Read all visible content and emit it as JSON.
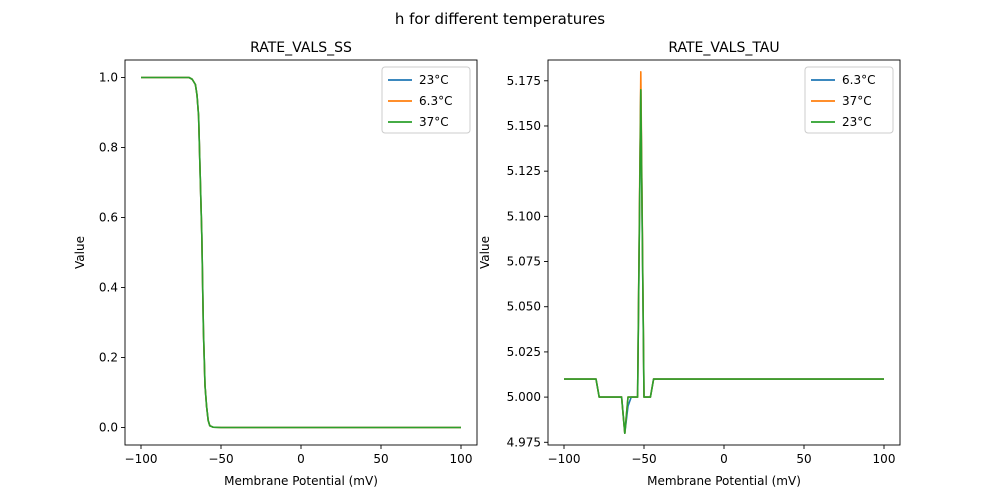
{
  "figure": {
    "suptitle": "h for different temperatures"
  },
  "chart_data": [
    {
      "type": "line",
      "title": "RATE_VALS_SS",
      "xlabel": "Membrane Potential (mV)",
      "ylabel": "Value",
      "xlim": [
        -110,
        110
      ],
      "ylim": [
        -0.05,
        1.05
      ],
      "xticks": [
        -100,
        -50,
        0,
        50,
        100
      ],
      "yticks": [
        0.0,
        0.2,
        0.4,
        0.6,
        0.8,
        1.0
      ],
      "ytick_decimals": 1,
      "grid": false,
      "legend_position": "top-right",
      "series": [
        {
          "name": "23°C",
          "color": "#1f77b4",
          "x": [
            -100,
            -80,
            -70,
            -68,
            -66,
            -65,
            -64,
            -63,
            -62,
            -61,
            -60,
            -59,
            -58,
            -57,
            -55,
            -50,
            0,
            100
          ],
          "y": [
            1.0,
            1.0,
            1.0,
            0.995,
            0.98,
            0.95,
            0.89,
            0.72,
            0.55,
            0.28,
            0.12,
            0.06,
            0.02,
            0.005,
            0.001,
            0.0,
            0.0,
            0.0
          ]
        },
        {
          "name": "6.3°C",
          "color": "#ff7f0e",
          "x": [
            -100,
            -80,
            -70,
            -68,
            -66,
            -65,
            -64,
            -63,
            -62,
            -61,
            -60,
            -59,
            -58,
            -57,
            -55,
            -50,
            0,
            100
          ],
          "y": [
            1.0,
            1.0,
            1.0,
            0.995,
            0.98,
            0.95,
            0.89,
            0.72,
            0.55,
            0.28,
            0.12,
            0.06,
            0.02,
            0.005,
            0.001,
            0.0,
            0.0,
            0.0
          ]
        },
        {
          "name": "37°C",
          "color": "#2ca02c",
          "x": [
            -100,
            -80,
            -70,
            -68,
            -66,
            -65,
            -64,
            -63,
            -62,
            -61,
            -60,
            -59,
            -58,
            -57,
            -55,
            -50,
            0,
            100
          ],
          "y": [
            1.0,
            1.0,
            1.0,
            0.995,
            0.98,
            0.95,
            0.89,
            0.72,
            0.55,
            0.28,
            0.12,
            0.06,
            0.02,
            0.005,
            0.001,
            0.0,
            0.0,
            0.0
          ]
        }
      ]
    },
    {
      "type": "line",
      "title": "RATE_VALS_TAU",
      "xlabel": "Membrane Potential (mV)",
      "ylabel": "Value",
      "xlim": [
        -110,
        110
      ],
      "ylim": [
        4.9735,
        5.1865
      ],
      "xticks": [
        -100,
        -50,
        0,
        50,
        100
      ],
      "yticks": [
        4.975,
        5.0,
        5.025,
        5.05,
        5.075,
        5.1,
        5.125,
        5.15,
        5.175
      ],
      "ytick_decimals": 3,
      "grid": false,
      "legend_position": "top-right",
      "series": [
        {
          "name": "6.3°C",
          "color": "#1f77b4",
          "x": [
            -100,
            -80,
            -78,
            -64,
            -62,
            -60,
            -58,
            -54,
            -52,
            -50,
            -48,
            -46,
            -44,
            0,
            100
          ],
          "y": [
            5.01,
            5.01,
            5.0,
            5.0,
            4.98,
            4.995,
            5.0,
            5.0,
            5.17,
            5.0,
            5.0,
            5.0,
            5.01,
            5.01,
            5.01
          ]
        },
        {
          "name": "37°C",
          "color": "#ff7f0e",
          "x": [
            -100,
            -80,
            -78,
            -64,
            -62,
            -60,
            -58,
            -54,
            -52,
            -50,
            -48,
            -46,
            -44,
            0,
            100
          ],
          "y": [
            5.01,
            5.01,
            5.0,
            5.0,
            4.98,
            5.0,
            5.0,
            5.0,
            5.18,
            5.0,
            5.0,
            5.0,
            5.01,
            5.01,
            5.01
          ]
        },
        {
          "name": "23°C",
          "color": "#2ca02c",
          "x": [
            -100,
            -80,
            -78,
            -64,
            -62,
            -60,
            -58,
            -54,
            -52,
            -50,
            -48,
            -46,
            -44,
            0,
            100
          ],
          "y": [
            5.01,
            5.01,
            5.0,
            5.0,
            4.98,
            5.0,
            5.0,
            5.0,
            5.17,
            5.0,
            5.0,
            5.0,
            5.01,
            5.01,
            5.01
          ]
        }
      ]
    }
  ]
}
